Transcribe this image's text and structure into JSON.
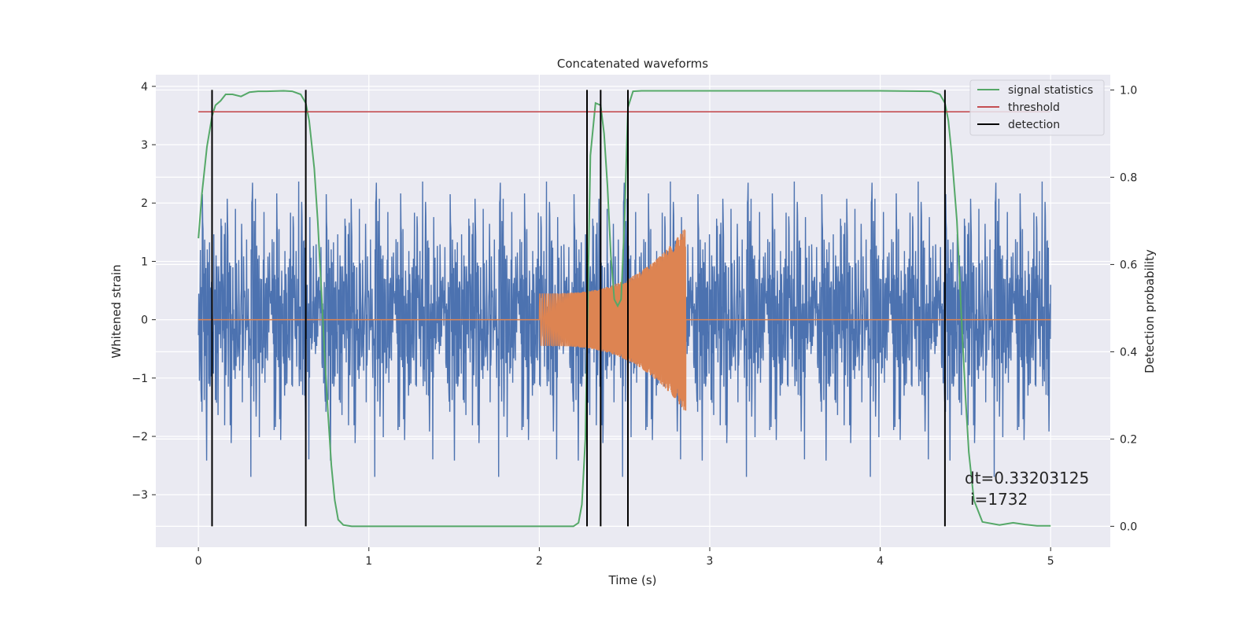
{
  "chart_data": {
    "type": "line",
    "title": "Concatenated waveforms",
    "xlabel": "Time (s)",
    "ylabel": "Whitened strain",
    "y2label": "Detection probability",
    "xlim": [
      -0.25,
      5.35
    ],
    "ylim": [
      -3.9,
      4.2
    ],
    "y2lim": [
      -0.048,
      1.035
    ],
    "xticks": [
      0,
      1,
      2,
      3,
      4,
      5
    ],
    "yticks": [
      -3,
      -2,
      -1,
      0,
      1,
      2,
      3,
      4
    ],
    "y2ticks": [
      0.0,
      0.2,
      0.4,
      0.6,
      0.8,
      1.0
    ],
    "xtick_labels": [
      "0",
      "1",
      "2",
      "3",
      "4",
      "5"
    ],
    "ytick_labels": [
      "−3",
      "−2",
      "−1",
      "0",
      "1",
      "2",
      "3",
      "4"
    ],
    "y2tick_labels": [
      "0.0",
      "0.2",
      "0.4",
      "0.6",
      "0.8",
      "1.0"
    ],
    "grid": true,
    "legend_position": "top-right",
    "series": [
      {
        "name": "strain noise",
        "axis": "left",
        "color": "#4c72b0",
        "x_range": [
          0,
          5
        ],
        "amplitude_typical": 1.0,
        "y_max": 3.85,
        "y_min": -3.6
      },
      {
        "name": "injected waveform",
        "axis": "left",
        "color": "#dd8452",
        "chirp_start": 2.0,
        "chirp_end": 2.86,
        "amplitude_start": 0.45,
        "amplitude_end": 1.6
      },
      {
        "name": "signal statistics",
        "axis": "right",
        "color": "#55a868",
        "x": [
          0,
          0.02,
          0.05,
          0.08,
          0.1,
          0.13,
          0.16,
          0.2,
          0.25,
          0.3,
          0.35,
          0.4,
          0.5,
          0.55,
          0.6,
          0.63,
          0.65,
          0.68,
          0.7,
          0.72,
          0.74,
          0.76,
          0.78,
          0.8,
          0.82,
          0.85,
          0.9,
          1.0,
          1.5,
          2.0,
          2.2,
          2.23,
          2.25,
          2.27,
          2.3,
          2.33,
          2.36,
          2.38,
          2.4,
          2.42,
          2.44,
          2.46,
          2.48,
          2.5,
          2.52,
          2.55,
          2.6,
          2.8,
          3.5,
          4.0,
          4.3,
          4.35,
          4.38,
          4.4,
          4.42,
          4.45,
          4.48,
          4.5,
          4.52,
          4.55,
          4.6,
          4.7,
          4.78,
          4.85,
          4.92,
          5.0
        ],
        "y": [
          0.66,
          0.76,
          0.87,
          0.94,
          0.965,
          0.975,
          0.99,
          0.99,
          0.985,
          0.995,
          0.997,
          0.997,
          0.998,
          0.997,
          0.99,
          0.97,
          0.93,
          0.82,
          0.7,
          0.55,
          0.4,
          0.26,
          0.14,
          0.06,
          0.015,
          0.003,
          0.0,
          0.0,
          0.0,
          0.0,
          0.0,
          0.008,
          0.05,
          0.2,
          0.85,
          0.97,
          0.965,
          0.9,
          0.78,
          0.62,
          0.52,
          0.505,
          0.52,
          0.7,
          0.96,
          0.997,
          0.998,
          0.998,
          0.998,
          0.998,
          0.997,
          0.99,
          0.97,
          0.93,
          0.85,
          0.7,
          0.45,
          0.3,
          0.17,
          0.06,
          0.01,
          0.003,
          0.008,
          0.004,
          0.001,
          0.001
        ]
      },
      {
        "name": "threshold",
        "axis": "right",
        "color": "#c44e52",
        "x": [
          0,
          5
        ],
        "y": [
          0.95,
          0.95
        ]
      },
      {
        "name": "detection",
        "axis": "right",
        "color": "#000000",
        "type": "vlines",
        "x": [
          0.08,
          0.63,
          2.28,
          2.36,
          2.52,
          4.38
        ],
        "ymin": 0.0,
        "ymax": 1.0
      }
    ],
    "legend": [
      "signal statistics",
      "threshold",
      "detection"
    ],
    "annotations": [
      "dt=0.33203125",
      "i=1732"
    ],
    "annotation_position": [
      4.5,
      -3.05
    ]
  },
  "colors": {
    "plot_bg": "#eaeaf2",
    "grid": "#ffffff",
    "noise": "#4c72b0",
    "waveform": "#dd8452",
    "stat": "#55a868",
    "threshold": "#c44e52",
    "detection": "#000000"
  }
}
